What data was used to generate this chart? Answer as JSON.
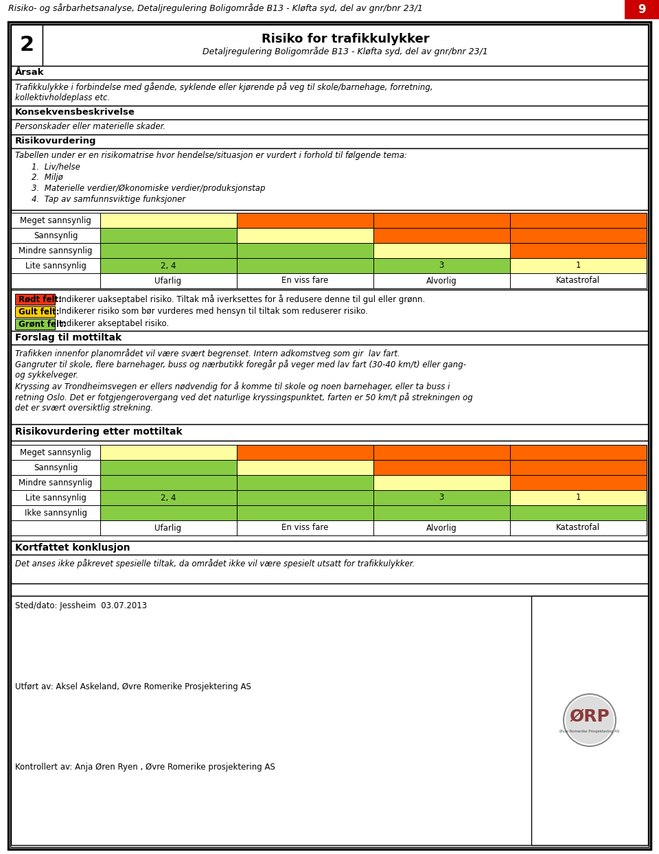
{
  "header_text": "Risiko- og sårbarhetsanalyse, Detaljregulering Boligområde B13 - Kløfta syd, del av gnr/bnr 23/1",
  "page_number": "9",
  "header_bg": "#cc0000",
  "title_number": "2",
  "title_main": "Risiko for trafikkulykker",
  "title_sub": "Detaljregulering Boligområde B13 - Kløfta syd, del av gnr/bnr 23/1",
  "arsak_label": "Årsak",
  "arsak_text": "Trafikkulykke i forbindelse med gående, syklende eller kjørende på veg til skole/barnehage, forretning,\nkollektivholdeplass etc.",
  "konsekvens_label": "Konsekvensbeskrivelse",
  "konsekvens_text": "Personskader eller materielle skader.",
  "risiko_label": "Risikovurdering",
  "risiko_text1": "Tabellen under er en risikomatrise hvor hendelse/situasjon er vurdert i forhold til følgende tema:",
  "risiko_items": [
    "1.  Liv/helse",
    "2.  Miljø",
    "3.  Materielle verdier/Økonomiske verdier/produksjonstap",
    "4.  Tap av samfunnsviktige funksjoner"
  ],
  "matrix1_rows": [
    "Meget sannsynlig",
    "Sannsynlig",
    "Mindre sannsynlig",
    "Lite sannsynlig"
  ],
  "matrix1_cols": [
    "Ufarlig",
    "En viss fare",
    "Alvorlig",
    "Katastrofal"
  ],
  "matrix1_colors": [
    [
      "#ffffa0",
      "#ff6600",
      "#ff6600",
      "#ff6600"
    ],
    [
      "#88cc44",
      "#ffffa0",
      "#ff6600",
      "#ff6600"
    ],
    [
      "#88cc44",
      "#88cc44",
      "#ffffa0",
      "#ff6600"
    ],
    [
      "#88cc44",
      "#88cc44",
      "#88cc44",
      "#ffffa0"
    ]
  ],
  "matrix1_labels": [
    [
      "",
      "",
      "",
      ""
    ],
    [
      "",
      "",
      "",
      ""
    ],
    [
      "",
      "",
      "",
      ""
    ],
    [
      "2, 4",
      "",
      "3",
      "1"
    ]
  ],
  "legend_colors": [
    "#ee3311",
    "#ffcc00",
    "#88cc44"
  ],
  "legend_labels": [
    "Rødt felt:",
    "Gult felt:",
    "Grønt felt:"
  ],
  "legend_descs": [
    "Indikerer uakseptabel risiko. Tiltak må iverksettes for å redusere denne til gul eller grønn.",
    "Indikerer risiko som bør vurderes med hensyn til tiltak som reduserer risiko.",
    "Indikerer akseptabel risiko."
  ],
  "forslag_label": "Forslag til mottiltak",
  "forslag_lines": [
    "Trafikken innenfor planområdet vil være svært begrenset. Intern adkomstveg som gir  lav fart.",
    "Gangruter til skole, flere barnehager, buss og nærbutikk foregår på veger med lav fart (30-40 km/t) eller gang-",
    "og sykkelveger.",
    "Kryssing av Trondheimsvegen er ellers nødvendig for å komme til skole og noen barnehager, eller ta buss i",
    "retning Oslo. Det er fotgjengerovergang ved det naturlige kryssingspunktet, farten er 50 km/t på strekningen og",
    "det er svært oversiktlig strekning."
  ],
  "risiko2_label": "Risikovurdering etter mottiltak",
  "matrix2_rows": [
    "Meget sannsynlig",
    "Sannsynlig",
    "Mindre sannsynlig",
    "Lite sannsynlig",
    "Ikke sannsynlig"
  ],
  "matrix2_cols": [
    "Ufarlig",
    "En viss fare",
    "Alvorlig",
    "Katastrofal"
  ],
  "matrix2_colors": [
    [
      "#ffffa0",
      "#ff6600",
      "#ff6600",
      "#ff6600"
    ],
    [
      "#88cc44",
      "#ffffa0",
      "#ff6600",
      "#ff6600"
    ],
    [
      "#88cc44",
      "#88cc44",
      "#ffffa0",
      "#ff6600"
    ],
    [
      "#88cc44",
      "#88cc44",
      "#88cc44",
      "#ffffa0"
    ],
    [
      "#88cc44",
      "#88cc44",
      "#88cc44",
      "#88cc44"
    ]
  ],
  "matrix2_labels": [
    [
      "",
      "",
      "",
      ""
    ],
    [
      "",
      "",
      "",
      ""
    ],
    [
      "",
      "",
      "",
      ""
    ],
    [
      "2, 4",
      "",
      "3",
      "1"
    ],
    [
      "",
      "",
      "",
      ""
    ]
  ],
  "konklusjon_label": "Kortfattet konklusjon",
  "konklusjon_text": "Det anses ikke påkrevet spesielle tiltak, da området ikke vil være spesielt utsatt for trafikkulykker.",
  "footer_stedato": "Sted/dato: Jessheim  03.07.2013",
  "footer_utfort": "Utført av: Aksel Askeland, Øvre Romerike Prosjektering AS",
  "footer_kontrollert": "Kontrollert av: Anja Øren Ryen , Øvre Romerike prosjektering AS"
}
